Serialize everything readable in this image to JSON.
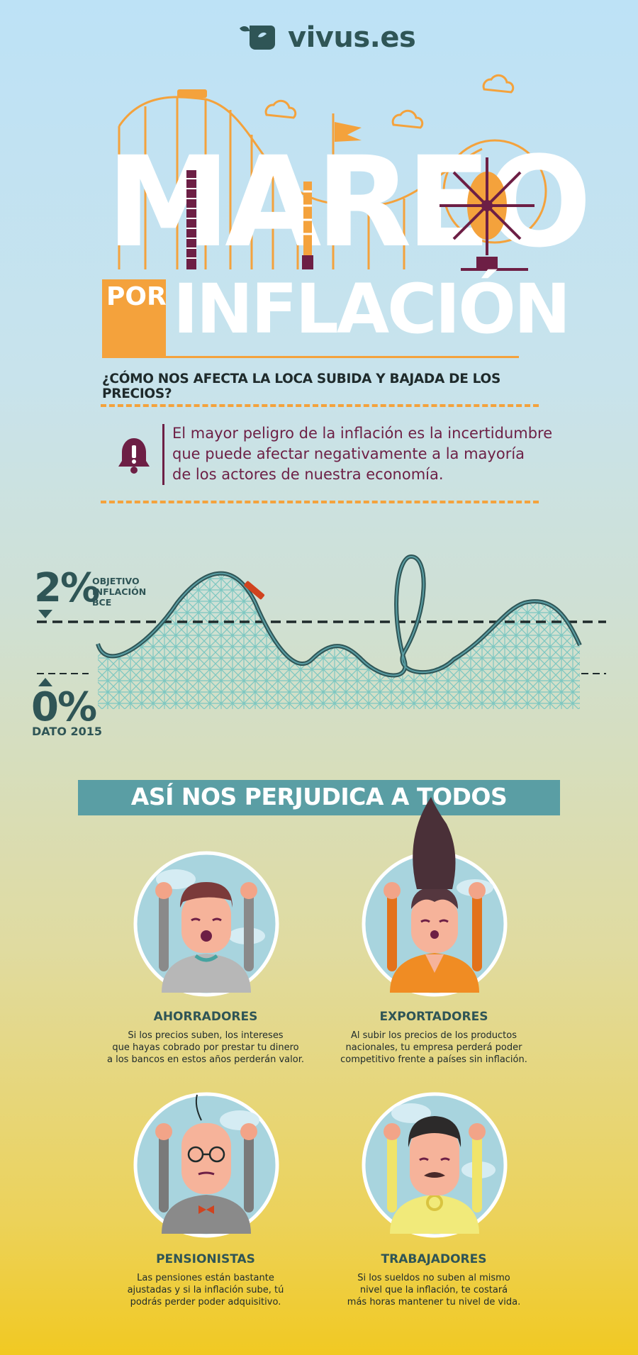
{
  "brand": {
    "logo_text": "vivus.es",
    "logo_icon": "vivus-leaf-icon"
  },
  "title": {
    "main": "MAREO",
    "por": "POR",
    "inflacion": "INFLACIÓN"
  },
  "subtitle": "¿CÓMO NOS AFECTA LA LOCA SUBIDA Y BAJADA DE LOS PRECIOS?",
  "warning": {
    "icon": "bell-alert-icon",
    "lines": [
      "El mayor peligro de la inflación es la incertidumbre",
      "que puede afectar negativamente a la mayoría",
      "de los actores de nuestra economía."
    ]
  },
  "coaster": {
    "target_value": "2%",
    "target_label": [
      "OBJETIVO",
      "INFLACIÓN",
      "BCE"
    ],
    "actual_value": "0%",
    "actual_label": "DATO 2015"
  },
  "section_banner": "ASÍ NOS PERJUDICA A TODOS",
  "groups": [
    {
      "title": "AHORRADORES",
      "lines": [
        "Si los precios suben, los intereses",
        "que hayas cobrado por prestar tu dinero",
        "a los bancos en estos años perderán valor."
      ]
    },
    {
      "title": "EXPORTADORES",
      "lines": [
        "Al subir los precios de los productos",
        "nacionales, tu empresa perderá poder",
        "competitivo frente a países sin inflación."
      ]
    },
    {
      "title": "PENSIONISTAS",
      "lines": [
        "Las pensiones están bastante",
        "ajustadas y si la inflación sube, tú",
        "podrás perder poder adquisitivo."
      ]
    },
    {
      "title": "TRABAJADORES",
      "lines": [
        "Si los sueldos no suben al mismo",
        "nivel que la inflación, te costará",
        "más horas mantener tu nivel de vida."
      ]
    }
  ],
  "colors": {
    "orange": "#f4a23c",
    "teal": "#5a9ea4",
    "dark_teal": "#2f5556",
    "maroon": "#6d1f45"
  }
}
